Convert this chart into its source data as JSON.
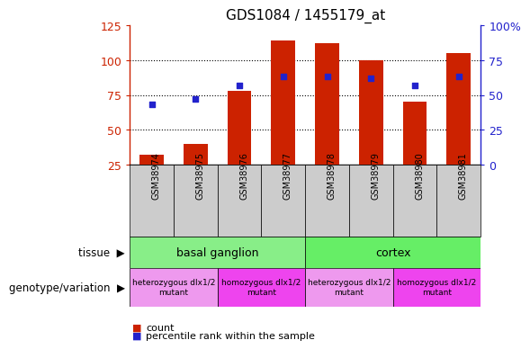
{
  "title": "GDS1084 / 1455179_at",
  "samples": [
    "GSM38974",
    "GSM38975",
    "GSM38976",
    "GSM38977",
    "GSM38978",
    "GSM38979",
    "GSM38980",
    "GSM38981"
  ],
  "counts": [
    32,
    40,
    78,
    114,
    112,
    100,
    70,
    105
  ],
  "percentiles": [
    43,
    47,
    57,
    63,
    63,
    62,
    57,
    63
  ],
  "ylim_left": [
    25,
    125
  ],
  "ylim_right": [
    0,
    100
  ],
  "yticks_left": [
    25,
    50,
    75,
    100,
    125
  ],
  "yticks_right": [
    0,
    25,
    50,
    75,
    100
  ],
  "bar_color": "#cc2200",
  "dot_color": "#2222cc",
  "tissue_groups": [
    {
      "label": "basal ganglion",
      "start": 0,
      "end": 4,
      "color": "#88ee88"
    },
    {
      "label": "cortex",
      "start": 4,
      "end": 8,
      "color": "#66ee66"
    }
  ],
  "genotype_groups": [
    {
      "label": "heterozygous dlx1/2\nmutant",
      "start": 0,
      "end": 2,
      "color": "#ee99ee"
    },
    {
      "label": "homozygous dlx1/2\nmutant",
      "start": 2,
      "end": 4,
      "color": "#ee44ee"
    },
    {
      "label": "heterozygous dlx1/2\nmutant",
      "start": 4,
      "end": 6,
      "color": "#ee99ee"
    },
    {
      "label": "homozygous dlx1/2\nmutant",
      "start": 6,
      "end": 8,
      "color": "#ee44ee"
    }
  ],
  "legend_count_label": "count",
  "legend_percentile_label": "percentile rank within the sample",
  "tissue_label": "tissue",
  "genotype_label": "genotype/variation",
  "bar_bottom": 25,
  "gridlines": [
    50,
    75,
    100
  ]
}
